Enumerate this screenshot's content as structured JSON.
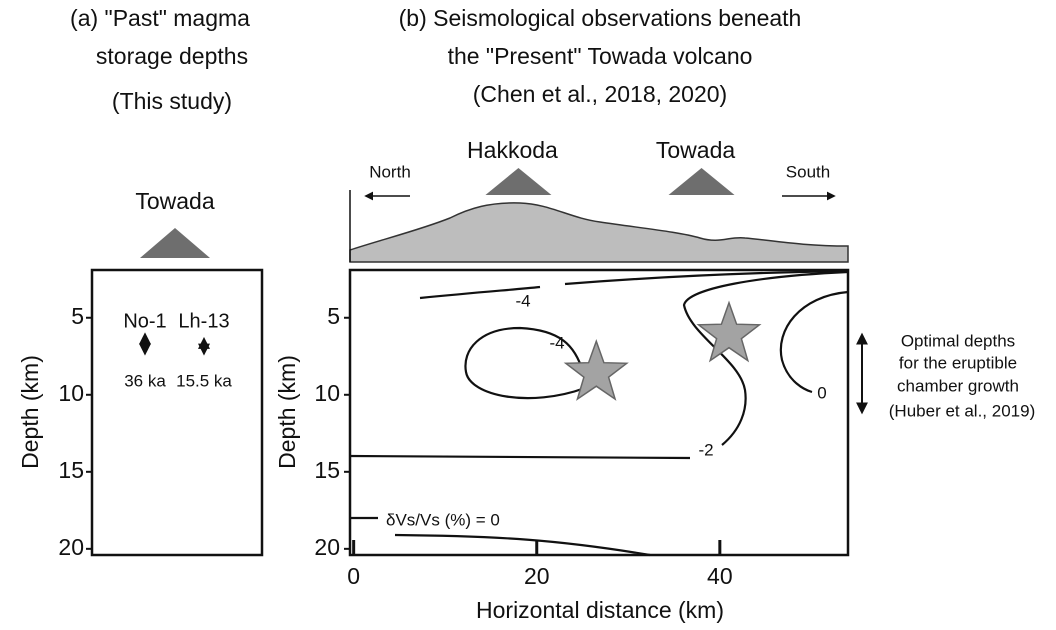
{
  "panel_a": {
    "title": [
      "(a) \"Past\" magma",
      "storage depths",
      "(This study)"
    ],
    "volcano": "Towada",
    "y_label": "Depth (km)",
    "ylim": [
      1.9,
      20.4
    ],
    "yticks": [
      5,
      10,
      15,
      20
    ],
    "samples": [
      {
        "name": "No-1",
        "age": "36 ka",
        "depth_range": [
          6.1,
          7.3
        ]
      },
      {
        "name": "Lh-13",
        "age": "15.5 ka",
        "depth_range": [
          6.4,
          7.3
        ]
      }
    ]
  },
  "panel_b": {
    "title": [
      "(b) Seismological observations beneath",
      "the \"Present\" Towada volcano",
      "(Chen et al., 2018, 2020)"
    ],
    "volcanoes": [
      {
        "name": "Hakkoda",
        "x": 18
      },
      {
        "name": "Towada",
        "x": 38
      }
    ],
    "directions": [
      "North",
      "South"
    ],
    "x_label": "Horizontal distance (km)",
    "y_label": "Depth (km)",
    "xlim": [
      -0.4,
      54
    ],
    "xticks": [
      0,
      20,
      40
    ],
    "ylim": [
      1.9,
      20.4
    ],
    "yticks": [
      5,
      10,
      15,
      20
    ],
    "contours": [
      {
        "level": -4
      },
      {
        "level": -4
      },
      {
        "level": -2
      },
      {
        "level": 0
      },
      {
        "level": 0
      }
    ],
    "zero_contour_label": "δVs/Vs (%) = 0",
    "stars": [
      {
        "x": 26.5,
        "depth": 8.6
      },
      {
        "x": 41,
        "depth": 6.1
      }
    ],
    "annotation": [
      "Optimal depths",
      "for the eruptible",
      "chamber growth",
      "(Huber et al., 2019)"
    ]
  }
}
